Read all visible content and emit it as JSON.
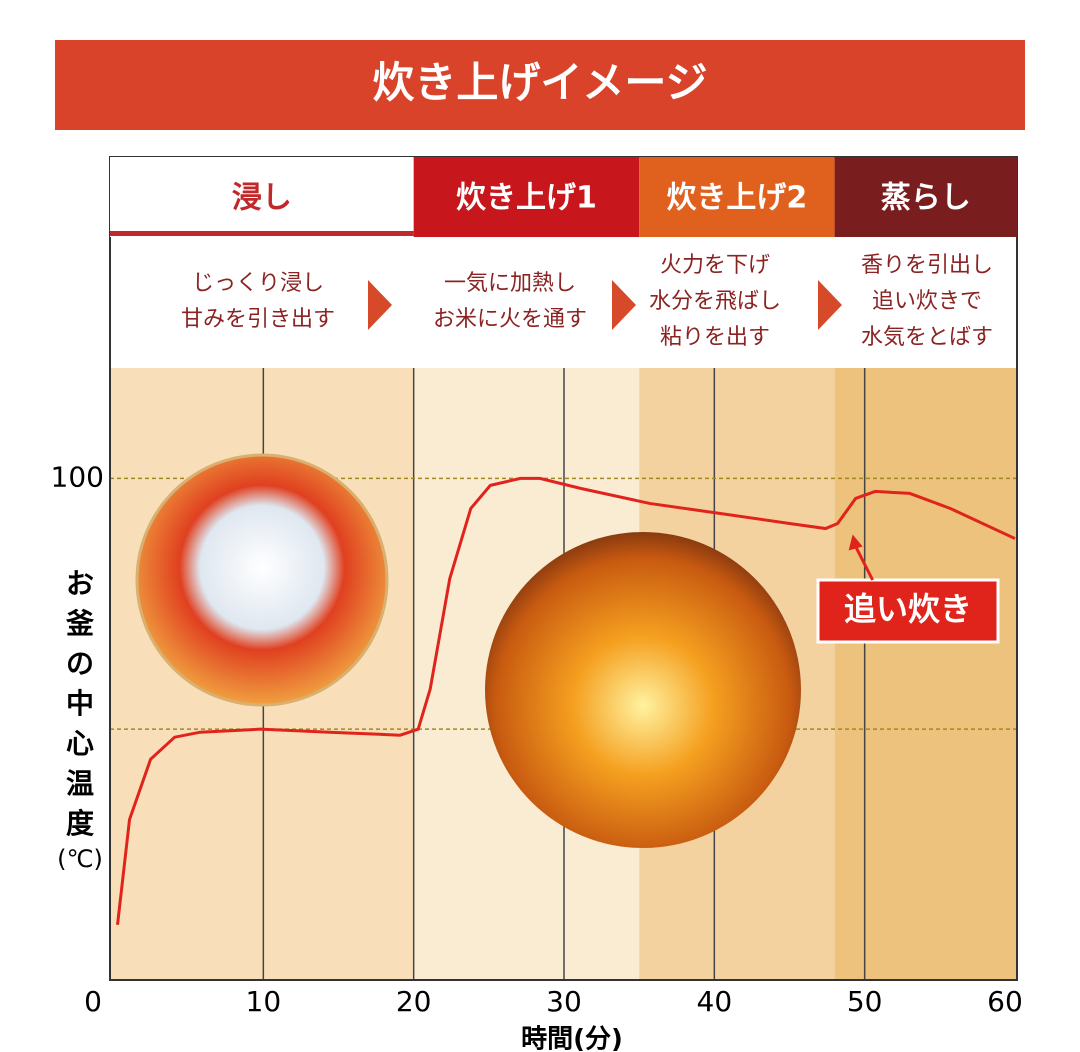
{
  "chart_data": {
    "type": "line",
    "title": "炊き上げイメージ",
    "y_label": "お釜の中心温度",
    "y_unit": "(℃)",
    "x_label": "時間(分)",
    "xlim": [
      0,
      60
    ],
    "xticks": [
      0,
      10,
      20,
      30,
      40,
      50,
      60
    ],
    "ylim": [
      0,
      122
    ],
    "yticks": [
      {
        "value": 50,
        "label": null
      },
      100
    ],
    "x": [
      0.3,
      1.1,
      2.5,
      4.1,
      5.8,
      9.8,
      14.4,
      19.1,
      20.3,
      21.1,
      22.4,
      23.8,
      25.1,
      27.1,
      28.4,
      31.1,
      35.7,
      40.4,
      45,
      47.4,
      48.2,
      49.4,
      50.7,
      53,
      55.7,
      60
    ],
    "series": [
      {
        "color": "#e0241b",
        "values": [
          11,
          32,
          44,
          48.4,
          49.4,
          50,
          49.4,
          48.8,
          50,
          58,
          80,
          94,
          98.6,
          100,
          100,
          98,
          95,
          93,
          91,
          90,
          91,
          96,
          97.4,
          97,
          94,
          88
        ]
      }
    ],
    "phases": [
      {
        "name": "浸し",
        "description": [
          "じっくり浸し",
          "甘みを引き出す"
        ],
        "start": 0,
        "end": 20,
        "color": "#ffffff",
        "text_color": "#c0282a",
        "band_color": "#f9dfb9"
      },
      {
        "name": "炊き上げ1",
        "description": [
          "一気に加熱し",
          "お米に火を通す"
        ],
        "start": 20,
        "end": 35,
        "color": "#c8161d",
        "text_color": "#ffffff",
        "band_color": "#faecd3"
      },
      {
        "name": "炊き上げ2",
        "description": [
          "火力を下げ",
          "水分を飛ばし",
          "粘りを出す"
        ],
        "start": 35,
        "end": 48,
        "color": "#e0611d",
        "text_color": "#ffffff",
        "band_color": "#f4d2a0"
      },
      {
        "name": "蒸らし",
        "description": [
          "香りを引出し",
          "追い炊きで",
          "水気をとばす"
        ],
        "start": 48,
        "end": 60,
        "color": "#7a1d1f",
        "text_color": "#ffffff",
        "band_color": "#ecc27c"
      }
    ],
    "annotation": {
      "text": "追い炊き",
      "x": 49.2,
      "y": 90
    }
  }
}
